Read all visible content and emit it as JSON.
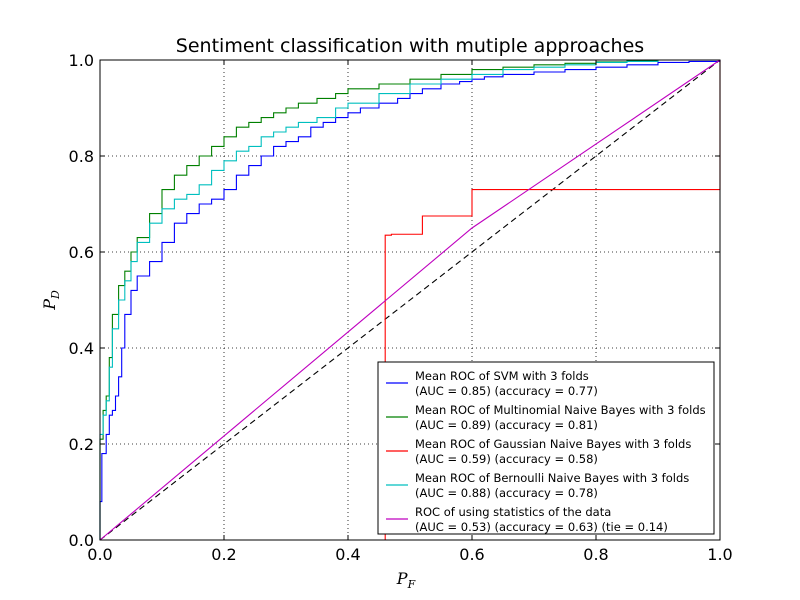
{
  "chart_data": {
    "type": "line",
    "title": "Sentiment classification with mutiple approaches",
    "xlabel_main": "P",
    "xlabel_sub": "F",
    "ylabel_main": "P",
    "ylabel_sub": "D",
    "xlim": [
      0.0,
      1.0
    ],
    "ylim": [
      0.0,
      1.0
    ],
    "xticks": [
      0.0,
      0.2,
      0.4,
      0.6,
      0.8,
      1.0
    ],
    "yticks": [
      0.0,
      0.2,
      0.4,
      0.6,
      0.8,
      1.0
    ],
    "xtick_labels": [
      "0.0",
      "0.2",
      "0.4",
      "0.6",
      "0.8",
      "1.0"
    ],
    "ytick_labels": [
      "0.0",
      "0.2",
      "0.4",
      "0.6",
      "0.8",
      "1.0"
    ],
    "grid": true,
    "legend_position": "lower-right",
    "series": [
      {
        "name": "Mean ROC of SVM with 3 folds",
        "name_line2": "(AUC = 0.85) (accuracy = 0.77)",
        "color": "#0000ff",
        "x": [
          0.0,
          0.0,
          0.003,
          0.003,
          0.01,
          0.01,
          0.015,
          0.02,
          0.025,
          0.03,
          0.035,
          0.04,
          0.05,
          0.06,
          0.08,
          0.1,
          0.12,
          0.14,
          0.16,
          0.18,
          0.2,
          0.22,
          0.24,
          0.26,
          0.28,
          0.3,
          0.32,
          0.34,
          0.36,
          0.38,
          0.4,
          0.42,
          0.45,
          0.48,
          0.5,
          0.52,
          0.55,
          0.58,
          0.6,
          0.62,
          0.65,
          0.7,
          0.75,
          0.8,
          0.85,
          0.9,
          0.95,
          1.0
        ],
        "y": [
          0.0,
          0.08,
          0.08,
          0.18,
          0.18,
          0.22,
          0.26,
          0.27,
          0.3,
          0.34,
          0.4,
          0.47,
          0.52,
          0.55,
          0.58,
          0.62,
          0.66,
          0.68,
          0.7,
          0.71,
          0.73,
          0.76,
          0.78,
          0.8,
          0.82,
          0.83,
          0.84,
          0.86,
          0.87,
          0.88,
          0.89,
          0.9,
          0.91,
          0.92,
          0.93,
          0.94,
          0.95,
          0.955,
          0.96,
          0.965,
          0.97,
          0.975,
          0.98,
          0.985,
          0.99,
          0.995,
          0.997,
          1.0
        ]
      },
      {
        "name": "Mean ROC of Multinomial Naive Bayes with 3 folds",
        "name_line2": "(AUC = 0.89) (accuracy = 0.81)",
        "color": "#008000",
        "x": [
          0.0,
          0.0,
          0.005,
          0.01,
          0.015,
          0.02,
          0.03,
          0.04,
          0.05,
          0.06,
          0.08,
          0.1,
          0.12,
          0.14,
          0.16,
          0.18,
          0.2,
          0.22,
          0.24,
          0.26,
          0.28,
          0.3,
          0.32,
          0.35,
          0.38,
          0.4,
          0.45,
          0.5,
          0.55,
          0.6,
          0.65,
          0.7,
          0.75,
          0.8,
          0.85,
          0.9,
          0.95,
          1.0
        ],
        "y": [
          0.0,
          0.21,
          0.27,
          0.3,
          0.38,
          0.47,
          0.53,
          0.56,
          0.6,
          0.63,
          0.68,
          0.73,
          0.76,
          0.78,
          0.8,
          0.82,
          0.84,
          0.86,
          0.87,
          0.88,
          0.89,
          0.9,
          0.91,
          0.92,
          0.93,
          0.94,
          0.95,
          0.96,
          0.97,
          0.98,
          0.985,
          0.99,
          0.993,
          0.996,
          0.998,
          1.0,
          1.0,
          1.0
        ]
      },
      {
        "name": "Mean ROC of Gaussian Naive Bayes with 3 folds",
        "name_line2": "(AUC = 0.59) (accuracy = 0.58)",
        "color": "#ff0000",
        "x": [
          0.0,
          0.46,
          0.47,
          0.52,
          0.6,
          1.0
        ],
        "y": [
          0.0,
          0.635,
          0.637,
          0.675,
          0.73,
          1.0
        ]
      },
      {
        "name": "Mean ROC of Bernoulli Naive Bayes with 3 folds",
        "name_line2": "(AUC = 0.88) (accuracy = 0.78)",
        "color": "#00bfbf",
        "x": [
          0.0,
          0.0,
          0.005,
          0.01,
          0.015,
          0.02,
          0.03,
          0.04,
          0.05,
          0.06,
          0.08,
          0.1,
          0.12,
          0.14,
          0.16,
          0.18,
          0.2,
          0.22,
          0.24,
          0.26,
          0.28,
          0.3,
          0.32,
          0.35,
          0.38,
          0.4,
          0.45,
          0.5,
          0.55,
          0.6,
          0.65,
          0.7,
          0.75,
          0.8,
          0.85,
          0.9,
          0.95,
          1.0
        ],
        "y": [
          0.0,
          0.22,
          0.26,
          0.29,
          0.36,
          0.44,
          0.5,
          0.54,
          0.58,
          0.62,
          0.66,
          0.69,
          0.71,
          0.72,
          0.74,
          0.77,
          0.79,
          0.81,
          0.82,
          0.84,
          0.85,
          0.86,
          0.87,
          0.88,
          0.9,
          0.91,
          0.93,
          0.95,
          0.96,
          0.97,
          0.98,
          0.985,
          0.99,
          0.995,
          0.997,
          1.0,
          1.0,
          1.0
        ]
      },
      {
        "name": "ROC of using statistics of the data",
        "name_line2": "(AUC = 0.53) (accuracy = 0.63) (tie = 0.14)",
        "color": "#bf00bf",
        "x": [
          0.0,
          0.6,
          1.0
        ],
        "y": [
          0.0,
          0.65,
          1.0
        ]
      }
    ],
    "reference_line": {
      "x": [
        0.0,
        1.0
      ],
      "y": [
        0.0,
        1.0
      ],
      "color": "#000000",
      "dash": true
    }
  }
}
